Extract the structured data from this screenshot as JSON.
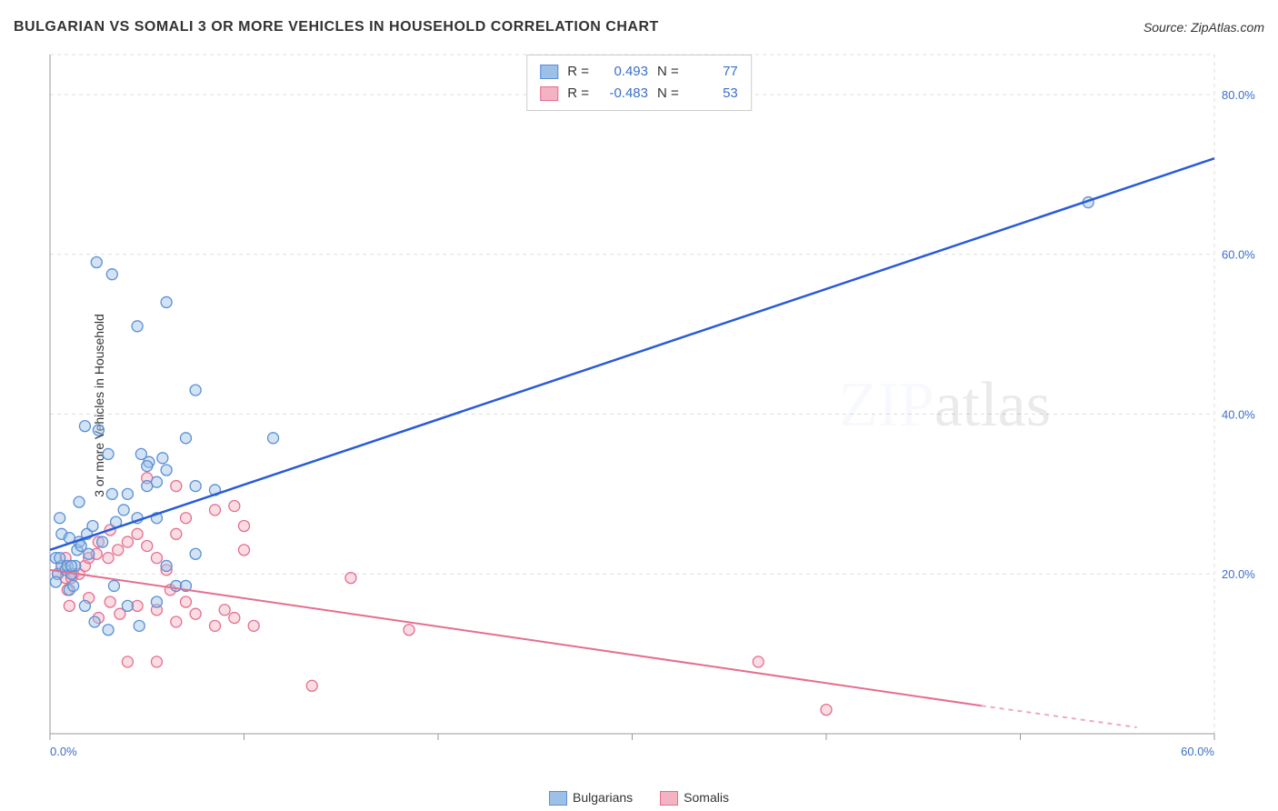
{
  "title": "BULGARIAN VS SOMALI 3 OR MORE VEHICLES IN HOUSEHOLD CORRELATION CHART",
  "source_label": "Source: ZipAtlas.com",
  "ylabel": "3 or more Vehicles in Household",
  "watermark": {
    "prefix": "ZIP",
    "suffix": "atlas"
  },
  "chart": {
    "type": "scatter",
    "xlim": [
      0,
      60
    ],
    "ylim": [
      0,
      85
    ],
    "xticks": [
      0,
      10,
      20,
      30,
      40,
      50,
      60
    ],
    "xtick_labels": [
      "0.0%",
      "",
      "",
      "",
      "",
      "",
      "60.0%"
    ],
    "yticks": [
      20,
      40,
      60,
      80
    ],
    "ytick_labels": [
      "20.0%",
      "40.0%",
      "60.0%",
      "80.0%"
    ],
    "grid_ylines": [
      20,
      40,
      60,
      80
    ],
    "grid_color": "#dddddd",
    "background": "#ffffff",
    "axis": {
      "label_color": "#3b6fc9",
      "label_fontsize": 13,
      "line_color": "#999999"
    },
    "marker_radius": 6,
    "series": [
      {
        "key": "bulgarians",
        "label": "Bulgarians",
        "color_fill": "#9cc0e7",
        "color_stroke": "#5b8fd6",
        "trend": {
          "x1": 0,
          "y1": 23,
          "x2": 60,
          "y2": 72,
          "color": "#2a5bd7",
          "width": 2.5
        },
        "stats": {
          "R": "0.493",
          "N": "77"
        },
        "points": [
          [
            0.4,
            20
          ],
          [
            0.3,
            19
          ],
          [
            0.6,
            21
          ],
          [
            0.3,
            22
          ],
          [
            0.8,
            20.5
          ],
          [
            1.0,
            18
          ],
          [
            0.5,
            22
          ],
          [
            0.9,
            21
          ],
          [
            1.2,
            18.5
          ],
          [
            1.1,
            20
          ],
          [
            1.4,
            23
          ],
          [
            0.6,
            25
          ],
          [
            1.3,
            21
          ],
          [
            1.5,
            24
          ],
          [
            1.6,
            23.5
          ],
          [
            1.9,
            25
          ],
          [
            2.0,
            22.5
          ],
          [
            1.1,
            21
          ],
          [
            0.5,
            27
          ],
          [
            1.5,
            29
          ],
          [
            1.0,
            24.5
          ],
          [
            2.7,
            24
          ],
          [
            3.4,
            26.5
          ],
          [
            2.2,
            26
          ],
          [
            3.2,
            30
          ],
          [
            3.8,
            28
          ],
          [
            4.5,
            27
          ],
          [
            5.5,
            27
          ],
          [
            4.0,
            30
          ],
          [
            5.0,
            31
          ],
          [
            5.5,
            31.5
          ],
          [
            3.0,
            35
          ],
          [
            4.7,
            35
          ],
          [
            5.1,
            34
          ],
          [
            5.8,
            34.5
          ],
          [
            5.0,
            33.5
          ],
          [
            6.0,
            33
          ],
          [
            7.5,
            31
          ],
          [
            8.5,
            30.5
          ],
          [
            1.8,
            38.5
          ],
          [
            2.5,
            38
          ],
          [
            7.5,
            43
          ],
          [
            7.0,
            37
          ],
          [
            11.5,
            37
          ],
          [
            4.5,
            51
          ],
          [
            6.0,
            54
          ],
          [
            2.4,
            59
          ],
          [
            3.2,
            57.5
          ],
          [
            2.3,
            14
          ],
          [
            3.0,
            13
          ],
          [
            4.6,
            13.5
          ],
          [
            1.8,
            16
          ],
          [
            4.0,
            16
          ],
          [
            5.5,
            16.5
          ],
          [
            3.3,
            18.5
          ],
          [
            6.5,
            18.5
          ],
          [
            7.5,
            22.5
          ],
          [
            6.0,
            21
          ],
          [
            7.0,
            18.5
          ],
          [
            53.5,
            66.5
          ]
        ]
      },
      {
        "key": "somalis",
        "label": "Somalis",
        "color_fill": "#f4b3c2",
        "color_stroke": "#e56e8e",
        "trend": {
          "x1": 0,
          "y1": 20.5,
          "x2": 48,
          "y2": 3.5,
          "color": "#e56e8e",
          "width": 2,
          "dash_extension": {
            "x1": 48,
            "y1": 3.5,
            "x2": 56,
            "y2": 0.8
          }
        },
        "stats": {
          "R": "-0.483",
          "N": "53"
        },
        "points": [
          [
            0.4,
            20
          ],
          [
            0.8,
            19.5
          ],
          [
            0.6,
            21
          ],
          [
            1.2,
            20
          ],
          [
            1.5,
            20
          ],
          [
            0.9,
            18
          ],
          [
            1.8,
            21
          ],
          [
            0.8,
            22
          ],
          [
            2.0,
            22
          ],
          [
            1.1,
            19.5
          ],
          [
            2.4,
            22.5
          ],
          [
            2.5,
            24
          ],
          [
            3.0,
            22
          ],
          [
            3.5,
            23
          ],
          [
            4.0,
            24
          ],
          [
            4.5,
            25
          ],
          [
            5.0,
            23.5
          ],
          [
            5.5,
            22
          ],
          [
            6.0,
            20.5
          ],
          [
            3.1,
            25.5
          ],
          [
            6.5,
            25
          ],
          [
            7.0,
            27
          ],
          [
            8.5,
            28
          ],
          [
            9.5,
            28.5
          ],
          [
            10.0,
            26
          ],
          [
            6.5,
            31
          ],
          [
            5.0,
            32
          ],
          [
            1.0,
            16
          ],
          [
            2.0,
            17
          ],
          [
            3.1,
            16.5
          ],
          [
            3.6,
            15
          ],
          [
            2.5,
            14.5
          ],
          [
            4.5,
            16
          ],
          [
            5.5,
            15.5
          ],
          [
            6.2,
            18
          ],
          [
            7.0,
            16.5
          ],
          [
            6.5,
            14
          ],
          [
            7.5,
            15
          ],
          [
            8.5,
            13.5
          ],
          [
            9.5,
            14.5
          ],
          [
            10.5,
            13.5
          ],
          [
            9.0,
            15.5
          ],
          [
            13.5,
            6
          ],
          [
            4.0,
            9
          ],
          [
            5.5,
            9
          ],
          [
            10.0,
            23
          ],
          [
            15.5,
            19.5
          ],
          [
            18.5,
            13
          ],
          [
            36.5,
            9
          ],
          [
            40.0,
            3
          ]
        ]
      }
    ]
  },
  "legend": {
    "items": [
      {
        "label": "Bulgarians",
        "fill": "#9cc0e7",
        "stroke": "#5b8fd6"
      },
      {
        "label": "Somalis",
        "fill": "#f4b3c2",
        "stroke": "#e56e8e"
      }
    ]
  },
  "statbox": {
    "label_R": "R =",
    "label_N": "N ="
  }
}
